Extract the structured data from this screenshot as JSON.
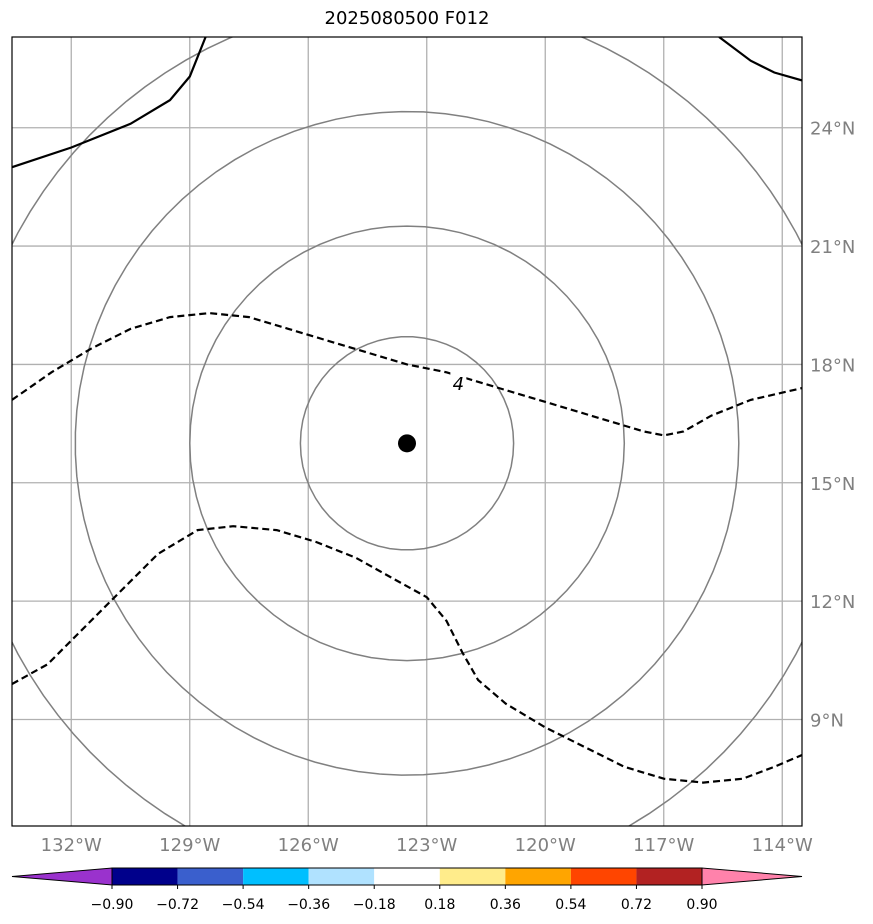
{
  "title": "2025080500 F012",
  "map": {
    "lon_range": [
      -133.5,
      -113.5
    ],
    "lat_range": [
      6.3,
      26.3
    ],
    "lon_ticks": [
      {
        "value": -132,
        "label": "132°W"
      },
      {
        "value": -129,
        "label": "129°W"
      },
      {
        "value": -126,
        "label": "126°W"
      },
      {
        "value": -123,
        "label": "123°W"
      },
      {
        "value": -120,
        "label": "120°W"
      },
      {
        "value": -117,
        "label": "117°W"
      },
      {
        "value": -114,
        "label": "114°W"
      }
    ],
    "lat_ticks": [
      {
        "value": 24,
        "label": "24°N"
      },
      {
        "value": 21,
        "label": "21°N"
      },
      {
        "value": 18,
        "label": "18°N"
      },
      {
        "value": 15,
        "label": "15°N"
      },
      {
        "value": 12,
        "label": "12°N"
      },
      {
        "value": 9,
        "label": "9°N"
      }
    ],
    "grid": true,
    "center_marker": {
      "lon": -123.5,
      "lat": 16.0
    },
    "range_rings_deg": [
      2.7,
      5.5,
      8.4,
      11.2
    ],
    "contour_label": "4",
    "contours": [
      {
        "style": "solid",
        "points": [
          [
            -133.5,
            23.0
          ],
          [
            -132.0,
            23.5
          ],
          [
            -130.5,
            24.1
          ],
          [
            -129.5,
            24.7
          ],
          [
            -129.0,
            25.3
          ],
          [
            -128.6,
            26.3
          ]
        ]
      },
      {
        "style": "solid",
        "points": [
          [
            -115.6,
            26.3
          ],
          [
            -114.8,
            25.7
          ],
          [
            -114.2,
            25.4
          ],
          [
            -113.5,
            25.2
          ]
        ]
      },
      {
        "style": "dashed",
        "points": [
          [
            -133.5,
            17.1
          ],
          [
            -132.5,
            17.8
          ],
          [
            -131.5,
            18.4
          ],
          [
            -130.5,
            18.9
          ],
          [
            -129.5,
            19.2
          ],
          [
            -128.5,
            19.3
          ],
          [
            -127.5,
            19.2
          ],
          [
            -126.5,
            18.9
          ],
          [
            -125.5,
            18.6
          ],
          [
            -124.5,
            18.3
          ],
          [
            -123.5,
            18.0
          ],
          [
            -122.5,
            17.8
          ],
          [
            -121.5,
            17.5
          ],
          [
            -120.5,
            17.2
          ],
          [
            -119.5,
            16.9
          ],
          [
            -118.5,
            16.6
          ],
          [
            -117.5,
            16.3
          ],
          [
            -117.0,
            16.2
          ],
          [
            -116.5,
            16.3
          ],
          [
            -115.8,
            16.7
          ],
          [
            -114.8,
            17.1
          ],
          [
            -113.5,
            17.4
          ]
        ]
      },
      {
        "style": "dashed",
        "points": [
          [
            -133.5,
            9.9
          ],
          [
            -132.6,
            10.4
          ],
          [
            -131.8,
            11.2
          ],
          [
            -130.8,
            12.2
          ],
          [
            -129.8,
            13.2
          ],
          [
            -128.8,
            13.8
          ],
          [
            -127.9,
            13.9
          ],
          [
            -126.8,
            13.8
          ],
          [
            -125.8,
            13.5
          ],
          [
            -124.8,
            13.1
          ],
          [
            -123.9,
            12.6
          ],
          [
            -123.0,
            12.1
          ],
          [
            -122.5,
            11.5
          ],
          [
            -122.1,
            10.7
          ],
          [
            -121.7,
            10.0
          ],
          [
            -121.0,
            9.4
          ],
          [
            -120.0,
            8.8
          ],
          [
            -119.0,
            8.3
          ],
          [
            -118.0,
            7.8
          ],
          [
            -117.0,
            7.5
          ],
          [
            -116.0,
            7.4
          ],
          [
            -115.0,
            7.5
          ],
          [
            -114.2,
            7.8
          ],
          [
            -113.5,
            8.1
          ]
        ]
      }
    ]
  },
  "colorbar": {
    "colors": [
      "#9a32cd",
      "#00008b",
      "#3a5fcd",
      "#00bfff",
      "#b0e2ff",
      "#ffffff",
      "#ffec8b",
      "#ffa500",
      "#ff4500",
      "#b22222",
      "#ff82ab"
    ],
    "tick_labels": [
      "−0.90",
      "−0.72",
      "−0.54",
      "−0.36",
      "−0.18",
      "0.18",
      "0.36",
      "0.54",
      "0.72",
      "0.90"
    ]
  }
}
